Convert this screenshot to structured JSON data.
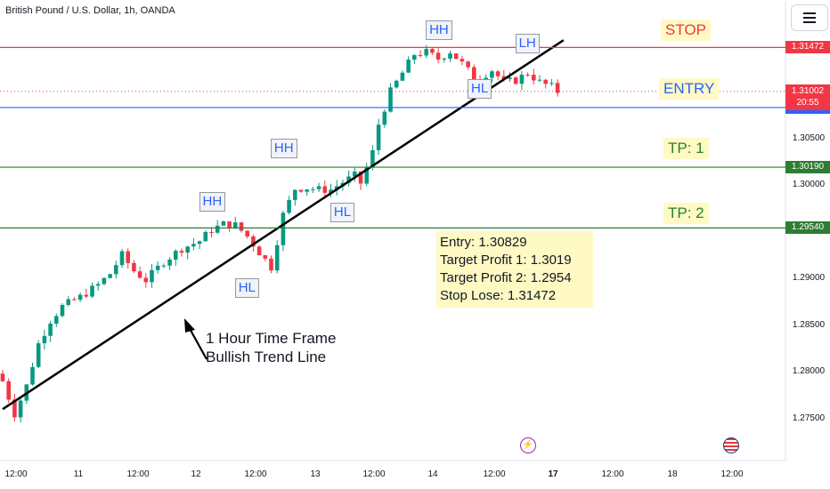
{
  "chart_data": {
    "type": "candlestick",
    "title": "British Pound / U.S. Dollar, 1h, OANDA",
    "ylim": [
      1.2705,
      1.3198
    ],
    "y_ticks": [
      "1.30500",
      "1.30000",
      "1.29000",
      "1.28500",
      "1.28000",
      "1.27500"
    ],
    "x_ticks": [
      {
        "label": "12:00",
        "bold": false
      },
      {
        "label": "11",
        "bold": false
      },
      {
        "label": "12:00",
        "bold": false
      },
      {
        "label": "12",
        "bold": false
      },
      {
        "label": "12:00",
        "bold": false
      },
      {
        "label": "13",
        "bold": false
      },
      {
        "label": "12:00",
        "bold": false
      },
      {
        "label": "14",
        "bold": false
      },
      {
        "label": "12:00",
        "bold": false
      },
      {
        "label": "17",
        "bold": true
      },
      {
        "label": "12:00",
        "bold": false
      },
      {
        "label": "18",
        "bold": false
      },
      {
        "label": "12:00",
        "bold": false
      }
    ],
    "grid": false,
    "bull_color": "#089981",
    "bear_color": "#f23645",
    "price_path": [
      [
        0,
        1.279
      ],
      [
        2,
        1.2755
      ],
      [
        4,
        1.2785
      ],
      [
        6,
        1.283
      ],
      [
        8,
        1.2855
      ],
      [
        10,
        1.287
      ],
      [
        13,
        1.288
      ],
      [
        16,
        1.2893
      ],
      [
        18,
        1.2905
      ],
      [
        20,
        1.2925
      ],
      [
        22,
        1.2908
      ],
      [
        24,
        1.2898
      ],
      [
        27,
        1.2918
      ],
      [
        30,
        1.2932
      ],
      [
        33,
        1.294
      ],
      [
        35,
        1.2952
      ],
      [
        37,
        1.2958
      ],
      [
        39,
        1.2957
      ],
      [
        41,
        1.2945
      ],
      [
        43,
        1.2928
      ],
      [
        45,
        1.2912
      ],
      [
        47,
        1.2968
      ],
      [
        49,
        1.2996
      ],
      [
        51,
        1.2997
      ],
      [
        53,
        1.2995
      ],
      [
        55,
        1.2995
      ],
      [
        57,
        1.3003
      ],
      [
        59,
        1.301
      ],
      [
        60,
        1.3002
      ],
      [
        62,
        1.3035
      ],
      [
        63,
        1.3065
      ],
      [
        65,
        1.31
      ],
      [
        67,
        1.312
      ],
      [
        69,
        1.314
      ],
      [
        71,
        1.3142
      ],
      [
        73,
        1.3135
      ],
      [
        75,
        1.3143
      ],
      [
        77,
        1.313
      ],
      [
        79,
        1.3115
      ],
      [
        80,
        1.3115
      ],
      [
        82,
        1.3123
      ],
      [
        84,
        1.311
      ],
      [
        86,
        1.3112
      ],
      [
        88,
        1.312
      ],
      [
        90,
        1.311
      ],
      [
        92,
        1.3105
      ],
      [
        93,
        1.31
      ]
    ],
    "levels": [
      {
        "name": "STOP",
        "price": 1.31472,
        "tag": "1.31472",
        "color": "#f23645"
      },
      {
        "name": "ENTRY",
        "price": 1.30829,
        "tag": "1.30829",
        "color": "#2962ff"
      },
      {
        "name": "TP: 1",
        "price": 1.3019,
        "tag": "1.30190",
        "color": "#2e7d32"
      },
      {
        "name": "TP: 2",
        "price": 1.2954,
        "tag": "1.29540",
        "color": "#2e7d32"
      }
    ],
    "current_price": {
      "value": "1.31002",
      "countdown": "20:55",
      "price": 1.31002,
      "color": "#f23645"
    },
    "trend_line": {
      "from": [
        0,
        1.276
      ],
      "to": [
        94,
        1.3155
      ]
    },
    "swing_labels": [
      {
        "text": "HH",
        "idx": 73,
        "price": 1.3165
      },
      {
        "text": "LH",
        "idx": 88,
        "price": 1.315
      },
      {
        "text": "HL",
        "idx": 80,
        "price": 1.3102
      },
      {
        "text": "HH",
        "idx": 47,
        "price": 1.3038
      },
      {
        "text": "HH",
        "idx": 35,
        "price": 1.2981
      },
      {
        "text": "HL",
        "idx": 57,
        "price": 1.297
      },
      {
        "text": "HL",
        "idx": 41,
        "price": 1.2889
      }
    ],
    "info_box": [
      "Entry: 1.30829",
      "Target Profit 1: 1.3019",
      "Target Profit 2: 1.2954",
      "Stop Lose: 1.31472"
    ],
    "annotation": {
      "line1": "1 Hour Time Frame",
      "line2": "Bullish Trend Line"
    }
  }
}
